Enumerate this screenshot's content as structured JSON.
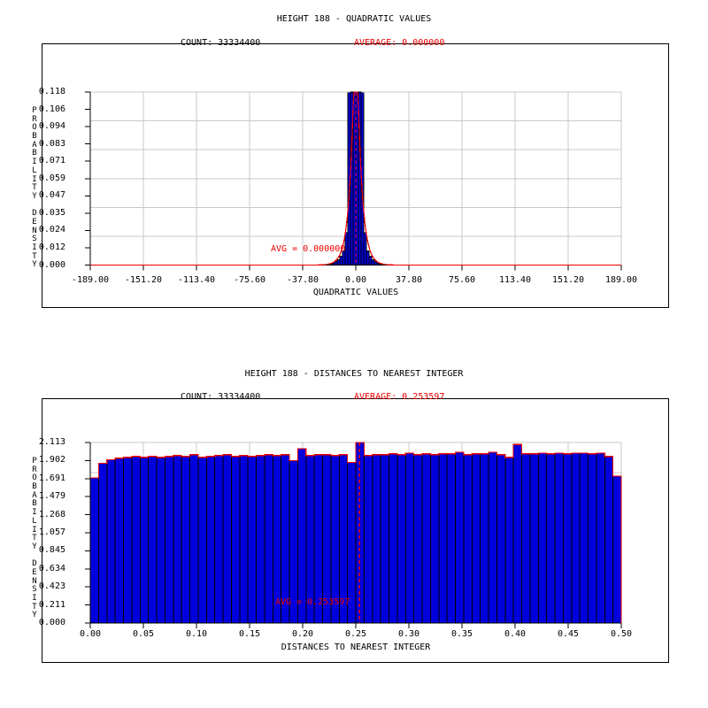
{
  "colors": {
    "red": "#ee0000",
    "bar_blue": "#0000dd",
    "grid_gray": "#c8c8c8",
    "axis_black": "#000000",
    "background": "#ffffff"
  },
  "chart_data": [
    {
      "type": "bar",
      "title": "HEIGHT 188 - QUADRATIC VALUES",
      "header": {
        "count": "COUNT: 33334400",
        "average": "AVERAGE: 0.000000"
      },
      "count": 33334400,
      "average": 0.0,
      "annotation": "AVG = 0.000000",
      "xlabel": "QUADRATIC VALUES",
      "ylabel": "PROBABILITY DENSITY",
      "xlim": [
        -189.0,
        189.0
      ],
      "ylim": [
        0.0,
        0.118
      ],
      "x_tick_labels": [
        "-189.00",
        "-151.20",
        "-113.40",
        "-75.60",
        "-37.80",
        "0.00",
        "37.80",
        "75.60",
        "113.40",
        "151.20",
        "189.00"
      ],
      "y_tick_labels": [
        "0.118",
        "0.106",
        "0.094",
        "0.083",
        "0.071",
        "0.059",
        "0.047",
        "0.035",
        "0.024",
        "0.012",
        "0.000"
      ],
      "grid": true,
      "legend": false,
      "n_bins": 200,
      "bins_nonzero": {
        "90": 0.0006,
        "91": 0.0012,
        "92": 0.0024,
        "93": 0.0036,
        "94": 0.006,
        "95": 0.0097,
        "96": 0.022,
        "97": 0.1175,
        "98": 0.118,
        "99": 0.118,
        "100": 0.118,
        "101": 0.118,
        "102": 0.1175,
        "103": 0.022,
        "104": 0.0097,
        "105": 0.006,
        "106": 0.0036,
        "107": 0.0024,
        "108": 0.0012,
        "109": 0.0006
      },
      "fit_curve": {
        "shape": "exponential-peak",
        "center": 0.0,
        "peak_density": 0.187,
        "decay": 3.47,
        "clipped_at": 0.118
      },
      "avg_line": true
    },
    {
      "type": "bar",
      "title": "HEIGHT 188 - DISTANCES TO NEAREST INTEGER",
      "header": {
        "count": "COUNT: 33334400",
        "average": "AVERAGE: 0.253597"
      },
      "count": 33334400,
      "average": 0.253597,
      "annotation": "AVG = 0.253597",
      "xlabel": "DISTANCES TO NEAREST INTEGER",
      "ylabel": "PROBABILITY DENSITY",
      "xlim": [
        0.0,
        0.5
      ],
      "ylim": [
        0.0,
        2.113
      ],
      "x_tick_labels": [
        "0.00",
        "0.05",
        "0.10",
        "0.15",
        "0.20",
        "0.25",
        "0.30",
        "0.35",
        "0.40",
        "0.45",
        "0.50"
      ],
      "y_tick_labels": [
        "2.113",
        "1.902",
        "1.691",
        "1.479",
        "1.268",
        "1.057",
        "0.845",
        "0.634",
        "0.423",
        "0.211",
        "0.000"
      ],
      "grid": true,
      "legend": false,
      "bins": [
        1.7,
        1.87,
        1.91,
        1.93,
        1.94,
        1.95,
        1.94,
        1.95,
        1.94,
        1.95,
        1.96,
        1.95,
        1.97,
        1.94,
        1.95,
        1.96,
        1.97,
        1.95,
        1.96,
        1.95,
        1.96,
        1.97,
        1.96,
        1.97,
        1.9,
        2.04,
        1.96,
        1.97,
        1.97,
        1.96,
        1.97,
        1.88,
        2.113,
        1.96,
        1.97,
        1.97,
        1.98,
        1.97,
        1.99,
        1.97,
        1.98,
        1.97,
        1.98,
        1.98,
        2.0,
        1.97,
        1.98,
        1.98,
        2.0,
        1.97,
        1.94,
        2.09,
        1.98,
        1.98,
        1.99,
        1.98,
        1.99,
        1.98,
        1.99,
        1.99,
        1.98,
        1.99,
        1.95,
        1.72
      ],
      "fit_curve": {
        "shape": "trace-bins"
      },
      "avg_line": true
    }
  ]
}
